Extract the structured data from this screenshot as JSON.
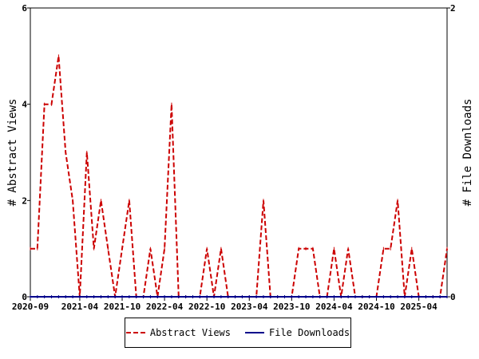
{
  "chart_data": {
    "type": "line",
    "y_left_label": "# Abstract Views",
    "y_right_label": "# File Downloads",
    "y_left_lim": [
      0,
      6
    ],
    "y_right_lim": [
      0,
      2
    ],
    "y_left_ticks": [
      "0",
      "2",
      "4",
      "6"
    ],
    "y_right_ticks": [
      "0",
      "2"
    ],
    "x_tick_labels": [
      "2020-09",
      "2021-04",
      "2021-10",
      "2022-04",
      "2022-10",
      "2023-04",
      "2023-10",
      "2024-04",
      "2024-10",
      "2025-04"
    ],
    "x_tick_months": [
      0,
      7,
      13,
      19,
      25,
      31,
      37,
      43,
      49,
      55
    ],
    "x_months_total": 59,
    "grid": false,
    "legend_position": "bottom",
    "series": [
      {
        "name": "Abstract Views",
        "color": "#cc0000",
        "dash": "dashed",
        "axis": "left",
        "values": [
          1,
          1,
          4,
          4,
          5,
          3,
          2,
          0,
          3,
          1,
          2,
          1,
          0,
          1,
          2,
          0,
          0,
          1,
          0,
          1,
          4,
          0,
          0,
          0,
          0,
          1,
          0,
          1,
          0,
          0,
          0,
          0,
          0,
          2,
          0,
          0,
          0,
          0,
          1,
          1,
          1,
          0,
          0,
          1,
          0,
          1,
          0,
          0,
          0,
          0,
          1,
          1,
          2,
          0,
          1,
          0,
          0,
          0,
          0,
          1
        ]
      },
      {
        "name": "File Downloads",
        "color": "#00008b",
        "dash": "solid",
        "axis": "right",
        "values": [
          0,
          0,
          0,
          0,
          0,
          0,
          0,
          0,
          0,
          0,
          0,
          0,
          0,
          0,
          0,
          0,
          0,
          0,
          0,
          0,
          0,
          0,
          0,
          0,
          0,
          0,
          0,
          0,
          0,
          0,
          0,
          0,
          0,
          0,
          0,
          0,
          0,
          0,
          0,
          0,
          0,
          0,
          0,
          0,
          0,
          0,
          0,
          0,
          0,
          0,
          0,
          0,
          0,
          0,
          0,
          0,
          0,
          0,
          0,
          0
        ]
      }
    ]
  },
  "legend": {
    "views_label": "Abstract Views",
    "downloads_label": "File Downloads"
  }
}
